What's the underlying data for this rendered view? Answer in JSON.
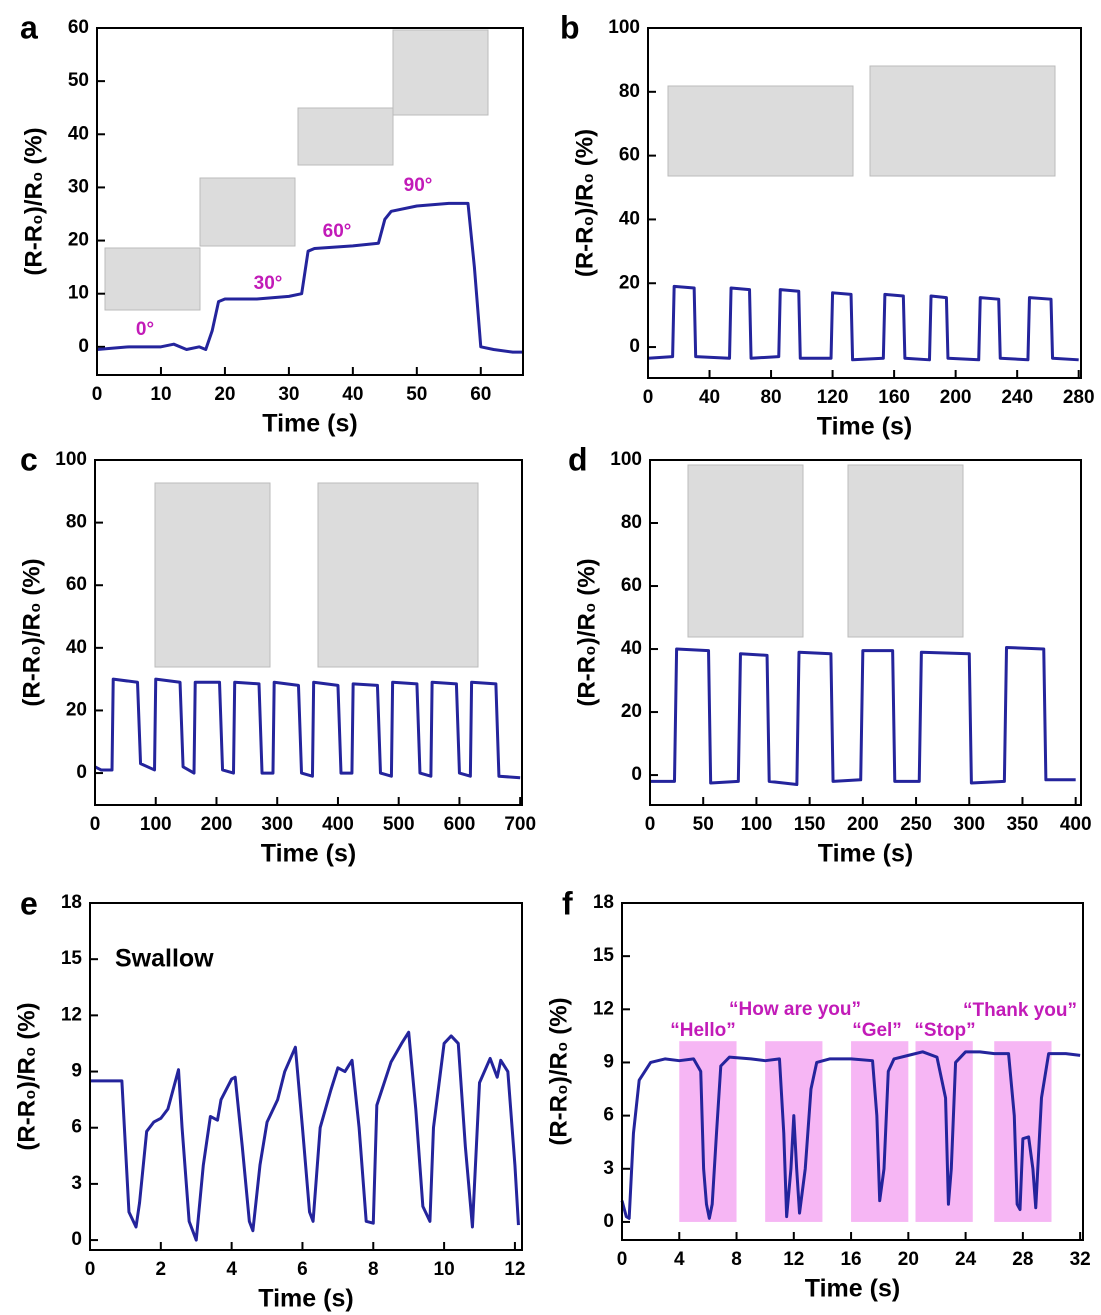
{
  "chart_data": [
    {
      "label": "a",
      "type": "line",
      "xlabel": "Time (s)",
      "ylabel": "(R-R₀)/R₀ (%)",
      "color": "#24249c",
      "xlim": [
        0,
        66.6
      ],
      "ylim": [
        -5.3,
        60
      ],
      "xticks": [
        0,
        10,
        20,
        30,
        40,
        50,
        60
      ],
      "yticks": [
        0,
        10,
        20,
        30,
        40,
        50,
        60
      ],
      "annotations": [
        "0°",
        "30°",
        "60°",
        "90°"
      ],
      "x": [
        0,
        5,
        10,
        12,
        14,
        16,
        17,
        18,
        19,
        20,
        25,
        30,
        32,
        33,
        34,
        40,
        44,
        45,
        46,
        50,
        55,
        58,
        59,
        60,
        62,
        65,
        66.6
      ],
      "values": [
        -0.5,
        0,
        0,
        0.5,
        -0.5,
        0,
        -0.5,
        3,
        8.5,
        9,
        9,
        9.5,
        10,
        18,
        18.5,
        19,
        19.5,
        24,
        25.5,
        26.5,
        27,
        27,
        15,
        0,
        -0.5,
        -1,
        -1
      ]
    },
    {
      "label": "b",
      "type": "line",
      "xlabel": "Time (s)",
      "ylabel": "(R-R₀)/R₀ (%)",
      "color": "#24249c",
      "xlim": [
        0,
        281.5
      ],
      "ylim": [
        -9.7,
        100
      ],
      "xticks": [
        0,
        40,
        80,
        120,
        160,
        200,
        240,
        280
      ],
      "yticks": [
        0,
        20,
        40,
        60,
        80,
        100
      ],
      "annotations": [],
      "x": [
        0,
        16,
        17,
        30,
        31,
        53,
        54,
        66,
        67,
        85,
        86,
        98,
        99,
        119,
        120,
        132,
        133,
        153,
        154,
        166,
        167,
        183,
        184,
        194,
        195,
        215,
        216,
        228,
        229,
        247,
        248,
        262,
        263,
        280
      ],
      "values": [
        -3.5,
        -3,
        19,
        18.5,
        -3,
        -3.5,
        18.5,
        18,
        -3.5,
        -3,
        18,
        17.5,
        -3.5,
        -3.5,
        17,
        16.5,
        -4,
        -3.5,
        16.5,
        16,
        -3.5,
        -4,
        16,
        15.5,
        -3.5,
        -4,
        15.5,
        15,
        -3.5,
        -4,
        15.5,
        15,
        -3.5,
        -4
      ]
    },
    {
      "label": "c",
      "type": "line",
      "xlabel": "Time (s)",
      "ylabel": "(R-R₀)/R₀ (%)",
      "color": "#24249c",
      "xlim": [
        0,
        703
      ],
      "ylim": [
        -10.2,
        100
      ],
      "xticks": [
        0,
        100,
        200,
        300,
        400,
        500,
        600,
        700
      ],
      "yticks": [
        0,
        20,
        40,
        60,
        80,
        100
      ],
      "annotations": [],
      "x": [
        0,
        10,
        28,
        30,
        70,
        75,
        98,
        100,
        140,
        145,
        163,
        165,
        205,
        210,
        228,
        230,
        270,
        275,
        293,
        295,
        335,
        340,
        358,
        360,
        400,
        405,
        423,
        425,
        465,
        470,
        488,
        490,
        530,
        535,
        553,
        555,
        595,
        600,
        618,
        620,
        660,
        665,
        700
      ],
      "values": [
        2,
        1,
        1,
        30,
        29,
        3,
        1,
        30,
        29,
        2,
        0,
        29,
        29,
        1,
        0,
        29,
        28.5,
        0,
        0,
        29,
        28,
        0,
        -1,
        29,
        28,
        0,
        0,
        28.5,
        28,
        0,
        -1,
        29,
        28.5,
        0,
        -1,
        29,
        28.5,
        0,
        -1,
        29,
        28.5,
        -1,
        -1.5
      ]
    },
    {
      "label": "d",
      "type": "line",
      "xlabel": "Time (s)",
      "ylabel": "(R-R₀)/R₀ (%)",
      "color": "#24249c",
      "xlim": [
        0,
        405
      ],
      "ylim": [
        -9.5,
        100
      ],
      "xticks": [
        0,
        50,
        100,
        150,
        200,
        250,
        300,
        350,
        400
      ],
      "yticks": [
        0,
        20,
        40,
        60,
        80,
        100
      ],
      "annotations": [],
      "x": [
        0,
        23,
        25,
        55,
        57,
        83,
        85,
        110,
        112,
        138,
        140,
        170,
        172,
        198,
        200,
        228,
        230,
        253,
        255,
        300,
        302,
        333,
        335,
        370,
        372,
        400
      ],
      "values": [
        -2,
        -2,
        40,
        39.5,
        -2.5,
        -2,
        38.5,
        38,
        -2,
        -3,
        39,
        38.5,
        -2,
        -1.5,
        39.5,
        39.5,
        -2,
        -2,
        39,
        38.5,
        -2.5,
        -2,
        40.5,
        40,
        -1.5,
        -1.5
      ]
    },
    {
      "label": "e",
      "type": "line",
      "xlabel": "Time (s)",
      "ylabel": "(R-R₀)/R₀ (%)",
      "color": "#24249c",
      "xlim": [
        0,
        12.2
      ],
      "ylim": [
        -0.53,
        18
      ],
      "xticks": [
        0,
        2,
        4,
        6,
        8,
        10,
        12
      ],
      "yticks": [
        0,
        3,
        6,
        9,
        12,
        15,
        18
      ],
      "annotations": [
        "Swallow"
      ],
      "x": [
        0,
        0.9,
        1.0,
        1.1,
        1.3,
        1.4,
        1.6,
        1.8,
        2.0,
        2.2,
        2.5,
        2.6,
        2.8,
        3.0,
        3.2,
        3.4,
        3.6,
        3.7,
        4.0,
        4.1,
        4.3,
        4.5,
        4.6,
        4.8,
        5.0,
        5.3,
        5.5,
        5.8,
        6.0,
        6.2,
        6.3,
        6.5,
        6.8,
        7.0,
        7.2,
        7.4,
        7.6,
        7.8,
        8.0,
        8.1,
        8.5,
        8.8,
        9.0,
        9.2,
        9.4,
        9.6,
        9.7,
        10.0,
        10.2,
        10.4,
        10.6,
        10.8,
        11.0,
        11.3,
        11.5,
        11.6,
        11.8,
        12.0,
        12.1
      ],
      "values": [
        8.5,
        8.5,
        5,
        1.5,
        0.7,
        2,
        5.8,
        6.3,
        6.5,
        7,
        9.1,
        6,
        1,
        0,
        4,
        6.6,
        6.4,
        7.5,
        8.6,
        8.7,
        5,
        1,
        0.5,
        4,
        6.3,
        7.5,
        9,
        10.3,
        6,
        1.5,
        1,
        6,
        8,
        9.2,
        9,
        9.6,
        6,
        1,
        0.9,
        7.2,
        9.5,
        10.5,
        11.1,
        7,
        1.8,
        1,
        6,
        10.5,
        10.9,
        10.5,
        5,
        0.7,
        8.4,
        9.7,
        8.7,
        9.6,
        9,
        4,
        0.8
      ]
    },
    {
      "label": "f",
      "type": "line",
      "xlabel": "Time (s)",
      "ylabel": "(R-R₀)/R₀ (%)",
      "color": "#24249c",
      "xlim": [
        0,
        32.2
      ],
      "ylim": [
        -1.02,
        18
      ],
      "xticks": [
        0,
        4,
        8,
        12,
        16,
        20,
        24,
        28,
        32
      ],
      "yticks": [
        0,
        3,
        6,
        9,
        12,
        15,
        18
      ],
      "annotations": [
        "“Hello”",
        "“How are you”",
        "“Gel”",
        "“Stop”",
        "“Thank you”"
      ],
      "highlights": [
        [
          4,
          8
        ],
        [
          10,
          14
        ],
        [
          16,
          20
        ],
        [
          20.5,
          24.5
        ],
        [
          26,
          30
        ]
      ],
      "x": [
        0,
        0.3,
        0.5,
        0.8,
        1.2,
        2,
        3,
        4,
        5,
        5.5,
        5.7,
        5.9,
        6.1,
        6.3,
        6.6,
        6.9,
        7.5,
        9,
        10,
        11,
        11.3,
        11.5,
        11.8,
        12,
        12.2,
        12.4,
        12.8,
        13.2,
        13.6,
        14.5,
        16,
        17.5,
        17.8,
        18,
        18.3,
        18.6,
        19,
        20,
        21,
        22,
        22.6,
        22.8,
        23.0,
        23.3,
        24,
        25,
        26,
        27,
        27.4,
        27.6,
        27.8,
        28,
        28.4,
        28.7,
        28.9,
        29.3,
        29.8,
        31,
        32
      ],
      "values": [
        1.2,
        0.3,
        0.2,
        5,
        8,
        9,
        9.2,
        9.1,
        9.2,
        8.5,
        3,
        1,
        0.2,
        1,
        5,
        8.8,
        9.3,
        9.2,
        9.1,
        9.2,
        5,
        0.3,
        3,
        6,
        3,
        0.5,
        3,
        7.5,
        9,
        9.2,
        9.2,
        9.1,
        6,
        1.2,
        3,
        8.5,
        9.2,
        9.4,
        9.6,
        9.3,
        7,
        1,
        3,
        9,
        9.6,
        9.6,
        9.5,
        9.5,
        6,
        1,
        0.7,
        4.7,
        4.8,
        3,
        0.8,
        7,
        9.5,
        9.5,
        9.4
      ]
    }
  ]
}
